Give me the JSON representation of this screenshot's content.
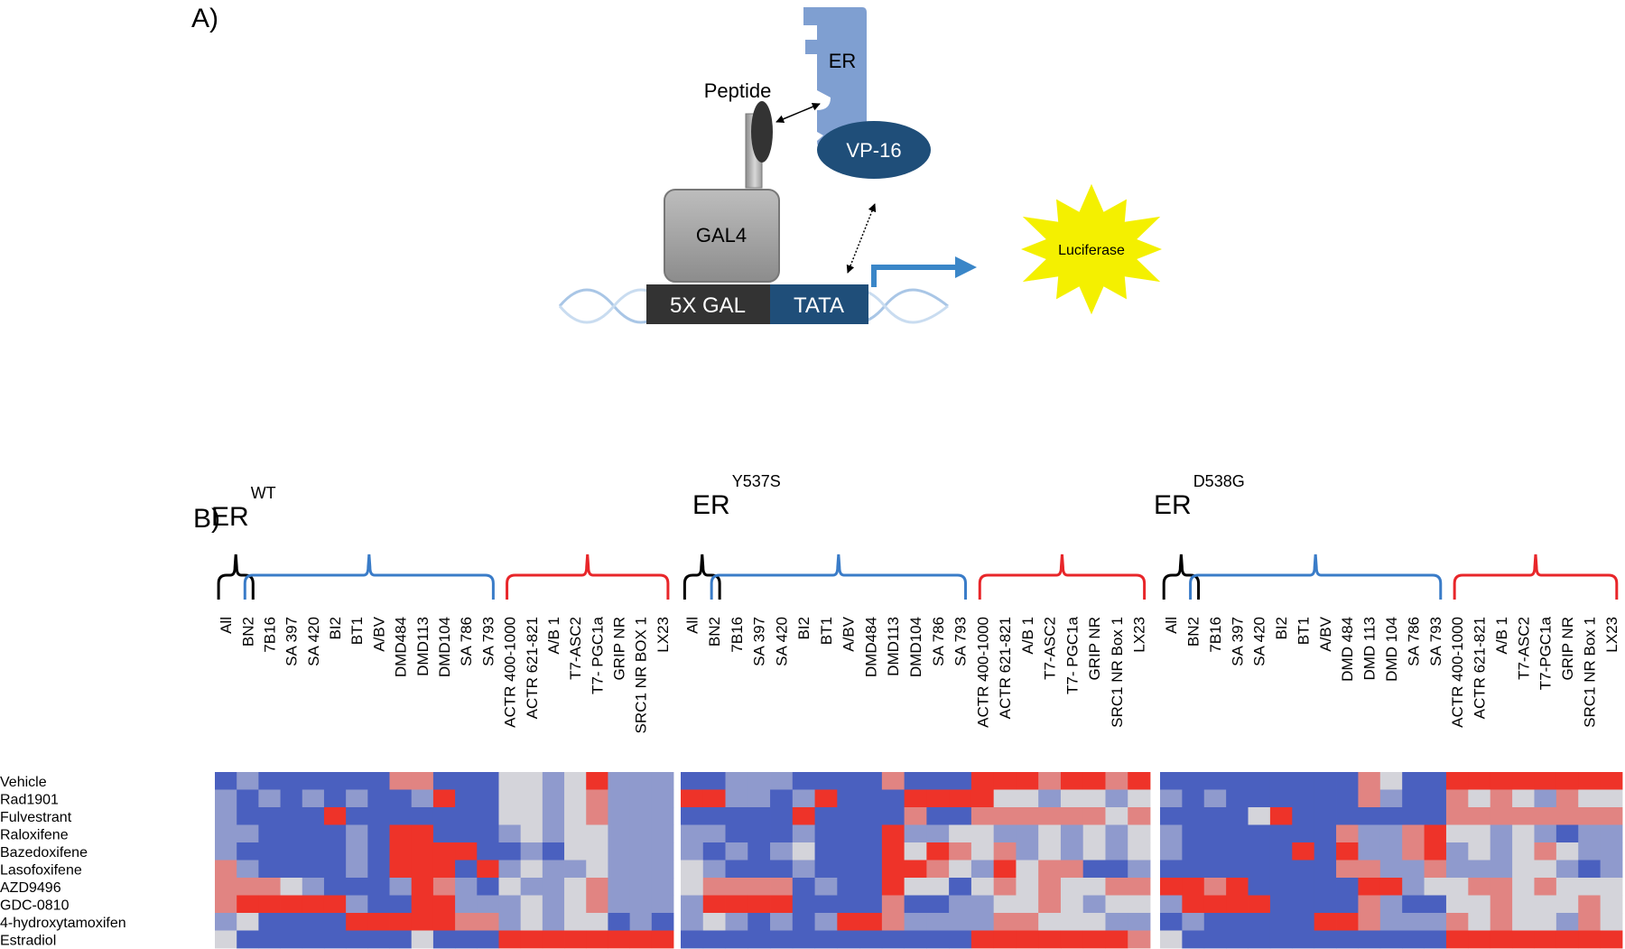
{
  "panel_a": {
    "label": "A)",
    "er": "ER",
    "peptide": "Peptide",
    "vp16": "VP-16",
    "gal4": "GAL4",
    "gal_box": "5X GAL",
    "tata": "TATA",
    "luciferase": "Luciferase"
  },
  "panel_b": {
    "label": "B)",
    "type": "heatmap",
    "zlim": [
      -2,
      2
    ],
    "colors": [
      "#4a60bf",
      "#d4d4da",
      "#ee3329"
    ],
    "row_labels": [
      "Vehicle",
      "Rad1901",
      "Fulvestrant",
      "Raloxifene",
      "Bazedoxifene",
      "Lasofoxifene",
      "AZD9496",
      "GDC-0810",
      "4-hydroxytamoxifen",
      "Estradiol"
    ],
    "panels": [
      {
        "title": "ER",
        "superscript": "WT",
        "columns": [
          "All",
          "BN2",
          "7B16",
          "SA 397",
          "SA 420",
          "BI2",
          "BT1",
          "A/BV",
          "DMD484",
          "DMD113",
          "DMD104",
          "SA 786",
          "SA 793",
          "ACTR 400-1000",
          "ACTR 621-821",
          "A/B 1",
          "T7-ASC2",
          "T7- PGC1a",
          "GRIP NR",
          "SRC1 NR BOX 1",
          "LX23"
        ],
        "values": [
          [
            -2,
            -1,
            -2,
            -2,
            -2,
            -2,
            -2,
            -2,
            1,
            1,
            -2,
            -2,
            -2,
            0,
            0,
            -1,
            0,
            2,
            -1,
            -1,
            -1
          ],
          [
            -1,
            -2,
            -1,
            -2,
            -1,
            -2,
            -1,
            -2,
            -2,
            -1,
            2,
            -2,
            -2,
            0,
            0,
            -1,
            0,
            1,
            -1,
            -1,
            -1
          ],
          [
            -1,
            -2,
            -2,
            -2,
            -2,
            2,
            -2,
            -2,
            -2,
            -2,
            -2,
            -2,
            -2,
            0,
            0,
            -1,
            0,
            1,
            -1,
            -1,
            -1
          ],
          [
            -1,
            -1,
            -2,
            -2,
            -2,
            -2,
            -1,
            -2,
            2,
            2,
            -2,
            -2,
            -2,
            -1,
            0,
            -1,
            0,
            0,
            -1,
            -1,
            -1
          ],
          [
            -1,
            -2,
            -2,
            -2,
            -2,
            -2,
            -1,
            -2,
            2,
            2,
            2,
            2,
            -2,
            -2,
            -1,
            -2,
            0,
            0,
            -1,
            -1,
            -1
          ],
          [
            1,
            -1,
            -2,
            -2,
            -2,
            -2,
            -1,
            -2,
            2,
            2,
            2,
            -2,
            2,
            -1,
            0,
            -1,
            -1,
            0,
            -1,
            -1,
            -1
          ],
          [
            1,
            1,
            1,
            0,
            -1,
            -2,
            -2,
            -2,
            -1,
            2,
            1,
            -1,
            -2,
            0,
            -1,
            -1,
            0,
            1,
            -1,
            -1,
            -1
          ],
          [
            1,
            2,
            2,
            2,
            2,
            2,
            -1,
            -2,
            -2,
            2,
            2,
            -1,
            -1,
            -1,
            0,
            -1,
            0,
            1,
            -1,
            -1,
            -1
          ],
          [
            -1,
            0,
            -2,
            -2,
            -2,
            -2,
            2,
            2,
            2,
            2,
            2,
            1,
            1,
            -1,
            0,
            -1,
            0,
            0,
            -2,
            -1,
            -2
          ],
          [
            0,
            -2,
            -2,
            -2,
            -2,
            -2,
            -2,
            -2,
            -2,
            0,
            -2,
            -2,
            -2,
            2,
            2,
            2,
            2,
            2,
            2,
            2,
            2
          ]
        ]
      },
      {
        "title": "ER",
        "superscript": "Y537S",
        "columns": [
          "All",
          "BN2",
          "7B16",
          "SA 397",
          "SA 420",
          "BI2",
          "BT1",
          "A/BV",
          "DMD484",
          "DMD113",
          "DMD104",
          "SA 786",
          "SA 793",
          "ACTR 400-1000",
          "ACTR 621-821",
          "A/B 1",
          "T7-ASC2",
          "T7- PGC1a",
          "GRIP NR",
          "SRC1 NR Box 1",
          "LX23"
        ],
        "values": [
          [
            -2,
            -2,
            -1,
            -1,
            -1,
            -2,
            -2,
            -2,
            -2,
            1,
            -2,
            -2,
            -2,
            2,
            2,
            2,
            1,
            2,
            2,
            1,
            2
          ],
          [
            2,
            2,
            -1,
            -1,
            -2,
            -1,
            2,
            -2,
            -2,
            -2,
            2,
            2,
            2,
            2,
            0,
            0,
            -1,
            0,
            0,
            -1,
            0
          ],
          [
            -2,
            -2,
            -2,
            -2,
            -2,
            2,
            -2,
            -2,
            -2,
            -2,
            1,
            -2,
            -2,
            1,
            1,
            1,
            1,
            1,
            1,
            0,
            1
          ],
          [
            -1,
            -1,
            -2,
            -2,
            -2,
            -1,
            -2,
            -2,
            -2,
            2,
            -1,
            -1,
            0,
            0,
            -1,
            -1,
            0,
            -1,
            0,
            -1,
            0
          ],
          [
            -1,
            -2,
            -1,
            -2,
            -1,
            0,
            -2,
            -2,
            -2,
            2,
            0,
            2,
            1,
            0,
            1,
            -1,
            0,
            -1,
            0,
            -1,
            0
          ],
          [
            0,
            -1,
            -2,
            -2,
            -2,
            -1,
            -2,
            -2,
            -2,
            2,
            2,
            1,
            0,
            -1,
            2,
            0,
            1,
            1,
            -2,
            -2,
            -1
          ],
          [
            0,
            1,
            1,
            1,
            1,
            -2,
            -1,
            -2,
            -2,
            2,
            0,
            0,
            -2,
            0,
            1,
            0,
            1,
            0,
            0,
            1,
            1
          ],
          [
            -1,
            2,
            2,
            2,
            2,
            -2,
            -2,
            -2,
            -2,
            1,
            -2,
            -2,
            -1,
            -1,
            0,
            0,
            1,
            0,
            -1,
            0,
            0
          ],
          [
            -1,
            0,
            -1,
            -2,
            -1,
            -2,
            -1,
            2,
            2,
            1,
            -1,
            -1,
            -1,
            -1,
            1,
            1,
            0,
            0,
            0,
            -1,
            -1
          ],
          [
            -2,
            -2,
            -2,
            -2,
            -2,
            -2,
            -2,
            -2,
            -2,
            -2,
            -2,
            -2,
            -2,
            2,
            2,
            2,
            2,
            2,
            2,
            2,
            1
          ]
        ]
      },
      {
        "title": "ER",
        "superscript": "D538G",
        "columns": [
          "All",
          "BN2",
          "7B16",
          "SA 397",
          "SA 420",
          "BI2",
          "BT1",
          "A/BV",
          "DMD 484",
          "DMD 113",
          "DMD 104",
          "SA 786",
          "SA 793",
          "ACTR 400-1000",
          "ACTR 621-821",
          "A/B 1",
          "T7-ASC2",
          "T7-PGC1a",
          "GRIP NR",
          "SRC1 NR Box 1",
          "LX23"
        ],
        "values": [
          [
            -2,
            -2,
            -2,
            -2,
            -2,
            -2,
            -2,
            -2,
            -2,
            1,
            0,
            -2,
            -2,
            2,
            2,
            2,
            2,
            2,
            2,
            2,
            2
          ],
          [
            -1,
            -2,
            -1,
            -2,
            -2,
            -2,
            -2,
            -2,
            -2,
            1,
            -1,
            -2,
            -2,
            1,
            0,
            1,
            0,
            -1,
            1,
            0,
            0
          ],
          [
            -2,
            -2,
            -2,
            -2,
            0,
            2,
            -2,
            -2,
            -2,
            -2,
            -2,
            -2,
            -2,
            1,
            1,
            1,
            1,
            1,
            1,
            1,
            1
          ],
          [
            -1,
            -2,
            -2,
            -2,
            -2,
            -2,
            -2,
            -2,
            1,
            -1,
            -1,
            1,
            2,
            0,
            0,
            -1,
            0,
            -1,
            -2,
            -1,
            -1
          ],
          [
            -1,
            -2,
            -2,
            -2,
            -2,
            -2,
            2,
            -2,
            2,
            -1,
            -1,
            1,
            2,
            -1,
            0,
            -1,
            0,
            1,
            0,
            -1,
            -1
          ],
          [
            -2,
            -2,
            -2,
            -2,
            -2,
            -2,
            -2,
            -2,
            1,
            1,
            -1,
            -1,
            1,
            -1,
            -1,
            -1,
            0,
            0,
            -1,
            -2,
            -1
          ],
          [
            2,
            2,
            1,
            2,
            -2,
            -2,
            -2,
            -2,
            -2,
            2,
            2,
            -1,
            0,
            0,
            1,
            1,
            0,
            1,
            0,
            0,
            0
          ],
          [
            -1,
            2,
            2,
            2,
            2,
            -2,
            -2,
            -2,
            -2,
            1,
            -1,
            -2,
            -2,
            0,
            0,
            1,
            0,
            0,
            0,
            1,
            0
          ],
          [
            -2,
            -1,
            -2,
            -2,
            -2,
            -2,
            -2,
            2,
            2,
            1,
            -1,
            -1,
            -1,
            1,
            0,
            1,
            0,
            0,
            -1,
            1,
            0
          ],
          [
            0,
            -2,
            -2,
            -2,
            -2,
            -2,
            -2,
            -2,
            -2,
            -2,
            -2,
            -2,
            -2,
            2,
            2,
            2,
            2,
            2,
            2,
            2,
            2
          ]
        ]
      }
    ]
  }
}
